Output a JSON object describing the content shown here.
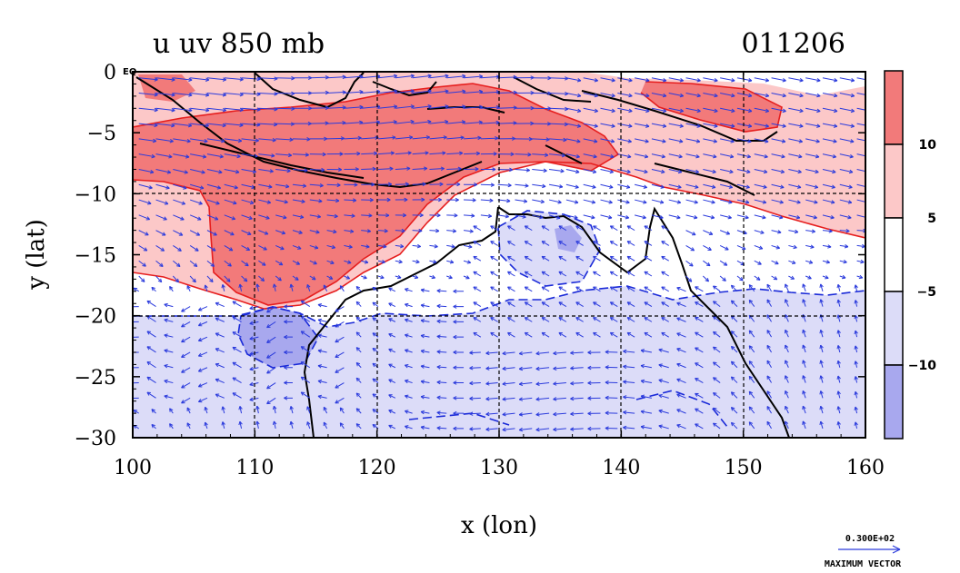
{
  "chart_data": {
    "type": "heatmap",
    "title": "u uv 850 mb",
    "date_label": "011206",
    "xlabel": "x (lon)",
    "ylabel": "y (lat)",
    "xlim": [
      100,
      160
    ],
    "ylim": [
      -30,
      0
    ],
    "x_ticks": [
      100,
      110,
      120,
      130,
      140,
      150,
      160
    ],
    "y_ticks": [
      0,
      -5,
      -10,
      -15,
      -20,
      -25,
      -30
    ],
    "y_tick_labels": [
      "0",
      "−5",
      "−10",
      "−15",
      "−20",
      "−25",
      "−30"
    ],
    "corner_label": "EQ",
    "grid": true,
    "colorbar": {
      "levels": [
        {
          "range": [
            10,
            99
          ],
          "color": "#f27a7a"
        },
        {
          "range": [
            5,
            10
          ],
          "color": "#fcc8c8"
        },
        {
          "range": [
            -5,
            5
          ],
          "color": "#ffffff"
        },
        {
          "range": [
            -10,
            -5
          ],
          "color": "#dcdcf8"
        },
        {
          "range": [
            -99,
            -10
          ],
          "color": "#a8a8ee"
        }
      ],
      "labels": [
        "10",
        "5",
        "−5",
        "−10"
      ]
    },
    "vector_scale": {
      "value": "0.300E+02",
      "label": "MAXIMUM VECTOR",
      "color": "#2a3adc"
    },
    "colors": {
      "positive_contour": "#e61e1e",
      "negative_contour": "#1a2ad8",
      "coast": "#000000"
    }
  }
}
